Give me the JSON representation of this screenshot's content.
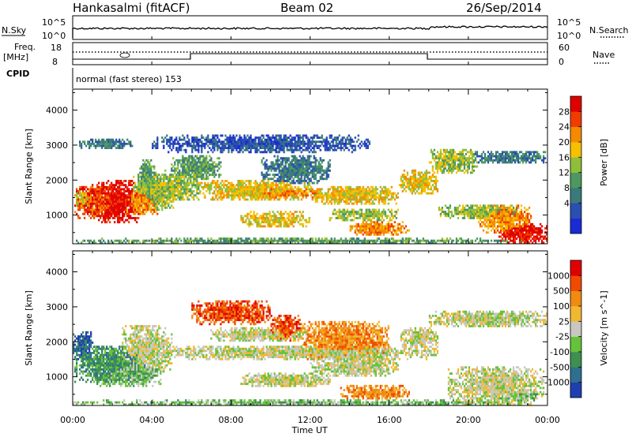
{
  "chart_data": {
    "type": "heatmap",
    "header": {
      "station": "Hankasalmi (fitACF)",
      "beam": "Beam 02",
      "date": "26/Sep/2014",
      "cpid_label": "CPID",
      "cpid_value": "normal (fast stereo) 153"
    },
    "noise_panel": {
      "left_label": "N.Sky",
      "right_label": "N.Search",
      "left_ticks": [
        "10^5",
        "10^0"
      ],
      "right_ticks": [
        "10^5",
        "10^0"
      ]
    },
    "freq_panel": {
      "left_label_1": "Freq.",
      "left_label_2": "[MHz]",
      "right_label": "Nave",
      "left_ticks": [
        "18",
        "8"
      ],
      "right_ticks": [
        "60",
        "0"
      ]
    },
    "x": {
      "label": "Time UT",
      "range_hours": [
        0,
        24
      ],
      "ticks": [
        "00:00",
        "04:00",
        "08:00",
        "12:00",
        "16:00",
        "20:00",
        "00:00"
      ]
    },
    "y": {
      "label": "Slant Range [km]",
      "range_km": [
        180,
        4600
      ],
      "ticks": [
        1000,
        2000,
        3000,
        4000
      ]
    },
    "panels": [
      {
        "id": "power",
        "colorbar_label": "Power [dB]",
        "colorbar_ticks": [
          "28",
          "24",
          "20",
          "16",
          "12",
          "8",
          "4"
        ],
        "palette": [
          "#1a2bd6",
          "#2a4fb0",
          "#3b7a7a",
          "#4c9860",
          "#8fbf3a",
          "#f5c000",
          "#f58a00",
          "#f03c00",
          "#e00000"
        ],
        "regions": [
          {
            "t": [
              0.1,
              2.7
            ],
            "r": [
              900,
              1850
            ],
            "level": 7
          },
          {
            "t": [
              0.1,
              1.0
            ],
            "r": [
              1200,
              1700
            ],
            "level": 5
          },
          {
            "t": [
              1.0,
              3.5
            ],
            "r": [
              750,
              2000
            ],
            "level": 8
          },
          {
            "t": [
              2.5,
              4.5
            ],
            "r": [
              1000,
              1800
            ],
            "level": 6
          },
          {
            "t": [
              3.0,
              5.2
            ],
            "r": [
              1100,
              2200
            ],
            "level": 4
          },
          {
            "t": [
              3.3,
              4.2
            ],
            "r": [
              1500,
              2600
            ],
            "level": 3
          },
          {
            "t": [
              4.5,
              6.5
            ],
            "r": [
              1400,
              2300
            ],
            "level": 4
          },
          {
            "t": [
              6.5,
              12.0
            ],
            "r": [
              1400,
              2000
            ],
            "level": 5
          },
          {
            "t": [
              8.0,
              12.5
            ],
            "r": [
              1500,
              1750
            ],
            "level": 6
          },
          {
            "t": [
              5.0,
              7.5
            ],
            "r": [
              2000,
              2700
            ],
            "level": 3
          },
          {
            "t": [
              9.5,
              13.0
            ],
            "r": [
              1900,
              2700
            ],
            "level": 2
          },
          {
            "t": [
              8.5,
              12.0
            ],
            "r": [
              650,
              1100
            ],
            "level": 5
          },
          {
            "t": [
              12.0,
              16.5
            ],
            "r": [
              1300,
              1850
            ],
            "level": 5
          },
          {
            "t": [
              13.0,
              16.5
            ],
            "r": [
              800,
              1200
            ],
            "level": 4
          },
          {
            "t": [
              14.0,
              17.0
            ],
            "r": [
              400,
              800
            ],
            "level": 6
          },
          {
            "t": [
              16.5,
              18.5
            ],
            "r": [
              1600,
              2300
            ],
            "level": 5
          },
          {
            "t": [
              18.0,
              20.5
            ],
            "r": [
              2200,
              2900
            ],
            "level": 4
          },
          {
            "t": [
              20.0,
              24.0
            ],
            "r": [
              2450,
              2850
            ],
            "level": 2
          },
          {
            "t": [
              18.5,
              22.5
            ],
            "r": [
              900,
              1300
            ],
            "level": 4
          },
          {
            "t": [
              20.5,
              23.2
            ],
            "r": [
              500,
              1300
            ],
            "level": 6
          },
          {
            "t": [
              21.5,
              24.0
            ],
            "r": [
              200,
              750
            ],
            "level": 8
          },
          {
            "t": [
              0.0,
              23.0
            ],
            "r": [
              180,
              330
            ],
            "level": 3
          },
          {
            "t": [
              4.0,
              15.0
            ],
            "r": [
              2800,
              3300
            ],
            "level": 1
          },
          {
            "t": [
              0.3,
              3.0
            ],
            "r": [
              2900,
              3200
            ],
            "level": 2
          }
        ]
      },
      {
        "id": "velocity",
        "colorbar_label": "Velocity [m s^-1]",
        "colorbar_ticks": [
          "1000",
          "500",
          "100",
          "25",
          "-25",
          "-100",
          "-500",
          "-1000"
        ],
        "palette": [
          "#1e3fb0",
          "#2e6f8f",
          "#3c9050",
          "#66c23a",
          "#c8c8c0",
          "#f0b830",
          "#f08a10",
          "#f04a00",
          "#e00000"
        ],
        "regions": [
          {
            "t": [
              0.0,
              1.0
            ],
            "r": [
              1500,
              2300
            ],
            "level": 1
          },
          {
            "t": [
              0.1,
              3.8
            ],
            "r": [
              800,
              1900
            ],
            "level": 2
          },
          {
            "t": [
              1.0,
              4.5
            ],
            "r": [
              700,
              1500
            ],
            "level": 3
          },
          {
            "t": [
              2.5,
              5.0
            ],
            "r": [
              1100,
              2500
            ],
            "level": 4
          },
          {
            "t": [
              4.5,
              18.5
            ],
            "r": [
              1500,
              1900
            ],
            "level": 4
          },
          {
            "t": [
              7.0,
              12.0
            ],
            "r": [
              2000,
              2400
            ],
            "level": 4
          },
          {
            "t": [
              8.5,
              13.0
            ],
            "r": [
              700,
              1100
            ],
            "level": 4
          },
          {
            "t": [
              12.0,
              16.5
            ],
            "r": [
              1000,
              1600
            ],
            "level": 4
          },
          {
            "t": [
              6.0,
              10.0
            ],
            "r": [
              2500,
              3200
            ],
            "level": 7
          },
          {
            "t": [
              10.0,
              11.5
            ],
            "r": [
              2000,
              2800
            ],
            "level": 7
          },
          {
            "t": [
              11.5,
              16.0
            ],
            "r": [
              1500,
              2600
            ],
            "level": 6
          },
          {
            "t": [
              13.5,
              17.0
            ],
            "r": [
              350,
              750
            ],
            "level": 6
          },
          {
            "t": [
              16.5,
              18.5
            ],
            "r": [
              1800,
              2400
            ],
            "level": 4
          },
          {
            "t": [
              18.0,
              24.0
            ],
            "r": [
              2400,
              2900
            ],
            "level": 4
          },
          {
            "t": [
              19.0,
              23.8
            ],
            "r": [
              200,
              1300
            ],
            "level": 4
          },
          {
            "t": [
              21.5,
              23.5
            ],
            "r": [
              300,
              600
            ],
            "level": 3
          },
          {
            "t": [
              0.0,
              23.0
            ],
            "r": [
              180,
              330
            ],
            "level": 3
          }
        ]
      }
    ]
  }
}
